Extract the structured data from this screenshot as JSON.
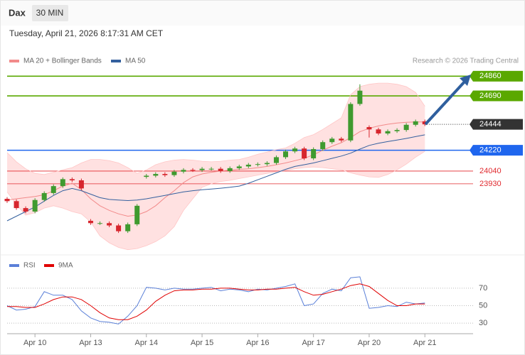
{
  "header": {
    "symbol": "Dax",
    "interval": "30 MIN",
    "timestamp": "Tuesday, April 21, 2026 8:17:31 AM CET"
  },
  "chart_data": [
    {
      "type": "candlestick",
      "categories": [
        null,
        null,
        null,
        "Apr 10",
        null,
        null,
        null,
        null,
        null,
        "Apr 13",
        null,
        null,
        null,
        null,
        null,
        "Apr 14",
        null,
        null,
        null,
        null,
        null,
        "Apr 15",
        null,
        null,
        null,
        null,
        null,
        "Apr 16",
        null,
        null,
        null,
        null,
        null,
        "Apr 17",
        null,
        null,
        null,
        null,
        null,
        "Apr 20",
        null,
        null,
        null,
        null,
        null,
        "Apr 21"
      ],
      "open": [
        23800,
        23780,
        23720,
        23690,
        23790,
        23850,
        23910,
        23970,
        23960,
        23610,
        23590,
        23590,
        23570,
        23520,
        23580,
        23990,
        24000,
        24015,
        24005,
        24035,
        24050,
        24048,
        24060,
        24060,
        24040,
        24065,
        24080,
        24095,
        24100,
        24110,
        24160,
        24210,
        24235,
        24150,
        24230,
        24290,
        24320,
        24305,
        24620,
        24420,
        24400,
        24365,
        24385,
        24395,
        24440,
        24470
      ],
      "high": [
        23815,
        23795,
        23735,
        23805,
        23865,
        23925,
        23985,
        23985,
        23975,
        23625,
        23605,
        23605,
        23585,
        23595,
        23755,
        24015,
        24030,
        24030,
        24050,
        24065,
        24065,
        24075,
        24075,
        24075,
        24080,
        24095,
        24110,
        24115,
        24125,
        24175,
        24225,
        24250,
        24250,
        24245,
        24305,
        24335,
        24335,
        24635,
        24790,
        24435,
        24415,
        24400,
        24410,
        24455,
        24485,
        24485
      ],
      "low": [
        23765,
        23705,
        23675,
        23675,
        23775,
        23835,
        23895,
        23945,
        23875,
        23575,
        23575,
        23555,
        23505,
        23505,
        23565,
        23975,
        23985,
        23990,
        23990,
        24020,
        24033,
        24033,
        24045,
        24025,
        24025,
        24050,
        24065,
        24080,
        24085,
        24095,
        24145,
        24195,
        24135,
        24135,
        24215,
        24275,
        24290,
        24290,
        24605,
        24330,
        24350,
        24350,
        24370,
        24380,
        24425,
        24429
      ],
      "close": [
        23780,
        23720,
        23690,
        23790,
        23850,
        23910,
        23970,
        23960,
        23890,
        23590,
        23590,
        23570,
        23520,
        23580,
        23740,
        24000,
        24015,
        24005,
        24035,
        24050,
        24048,
        24060,
        24060,
        24040,
        24065,
        24080,
        24095,
        24100,
        24110,
        24160,
        24210,
        24235,
        24150,
        24230,
        24290,
        24320,
        24305,
        24620,
        24735,
        24400,
        24365,
        24385,
        24395,
        24440,
        24470,
        24444
      ],
      "up_color": "#3f9a2f",
      "down_color": "#d7262e",
      "series": [
        {
          "name": "MA 20 + Bollinger Bands",
          "color": "#f28a8a",
          "band_color": "#ffe1e1",
          "values": [
            23790,
            23800,
            23810,
            23820,
            23835,
            23870,
            23910,
            23935,
            23880,
            23800,
            23740,
            23700,
            23670,
            23650,
            23660,
            23690,
            23740,
            23810,
            23870,
            23940,
            23990,
            24015,
            24030,
            24040,
            24048,
            24055,
            24060,
            24070,
            24080,
            24095,
            24110,
            24130,
            24150,
            24180,
            24220,
            24255,
            24285,
            24330,
            24380,
            24410,
            24430,
            24445,
            24455,
            24462,
            24465,
            24465
          ],
          "upper": [
            24200,
            24120,
            24060,
            24020,
            24010,
            24030,
            24050,
            24070,
            24110,
            24140,
            24140,
            24130,
            24110,
            24070,
            24020,
            24050,
            24095,
            24120,
            24135,
            24140,
            24135,
            24125,
            24120,
            24125,
            24135,
            24140,
            24160,
            24185,
            24205,
            24225,
            24240,
            24280,
            24330,
            24355,
            24400,
            24450,
            24500,
            24700,
            24770,
            24790,
            24800,
            24800,
            24790,
            24770,
            24720,
            24600
          ],
          "lower": [
            23860,
            23750,
            23660,
            23680,
            23720,
            23740,
            23720,
            23690,
            23670,
            23600,
            23480,
            23420,
            23380,
            23360,
            23370,
            23395,
            23430,
            23480,
            23560,
            23700,
            23800,
            23900,
            23930,
            23950,
            23960,
            23975,
            23990,
            24005,
            24020,
            24035,
            24045,
            24060,
            24070,
            24075,
            24070,
            24060,
            24050,
            24025,
            24005,
            23990,
            23985,
            24010,
            24050,
            24100,
            24160,
            24210
          ]
        },
        {
          "name": "MA 50",
          "color": "#34609e",
          "values": [
            23610,
            23650,
            23690,
            23730,
            23780,
            23830,
            23870,
            23890,
            23870,
            23840,
            23810,
            23795,
            23790,
            23785,
            23790,
            23800,
            23815,
            23830,
            23845,
            23860,
            23870,
            23878,
            23885,
            23892,
            23900,
            23910,
            23935,
            23965,
            23995,
            24025,
            24055,
            24080,
            24095,
            24110,
            24130,
            24150,
            24170,
            24195,
            24230,
            24262,
            24280,
            24295,
            24308,
            24322,
            24338,
            24353
          ]
        }
      ],
      "levels": [
        {
          "value": 24860,
          "color": "#5aa800",
          "boxed": true,
          "dotted": false
        },
        {
          "value": 24690,
          "color": "#5aa800",
          "boxed": true,
          "dotted": false
        },
        {
          "value": 24444,
          "color": "#333333",
          "boxed": true,
          "dotted": true
        },
        {
          "value": 24220,
          "color": "#1f66ee",
          "boxed": true,
          "dotted": false
        },
        {
          "value": 24040,
          "color": "#e0292e",
          "boxed": false,
          "dotted": false
        },
        {
          "value": 23930,
          "color": "#e0292e",
          "boxed": false,
          "dotted": false
        }
      ],
      "ylim": [
        23340,
        24905
      ],
      "credit": "Research © 2026 Trading Central"
    },
    {
      "type": "line",
      "series": [
        {
          "name": "RSI",
          "color": "#5b80d8",
          "values": [
            50,
            45,
            46,
            49,
            66,
            62,
            62,
            57,
            44,
            36,
            32,
            31,
            29,
            38,
            50,
            71,
            70,
            68,
            70,
            69,
            69,
            70,
            71,
            67,
            69,
            68,
            66,
            69,
            68,
            70,
            72,
            75,
            50,
            52,
            64,
            69,
            67,
            82,
            83,
            47,
            48,
            50,
            49,
            54,
            52,
            53
          ]
        },
        {
          "name": "9MA",
          "color": "#e00000",
          "values": [
            49,
            49,
            48,
            48,
            52,
            57,
            60,
            60,
            57,
            50,
            42,
            36,
            34,
            34,
            38,
            45,
            55,
            62,
            67,
            68,
            68,
            69,
            69,
            70,
            70,
            69,
            68,
            68,
            69,
            69,
            70,
            71,
            66,
            62,
            63,
            66,
            69,
            73,
            75,
            72,
            64,
            56,
            50,
            50,
            52,
            52
          ]
        }
      ],
      "ylim": [
        22,
        87
      ],
      "yticks": [
        30,
        50,
        70
      ],
      "grid": true
    }
  ]
}
